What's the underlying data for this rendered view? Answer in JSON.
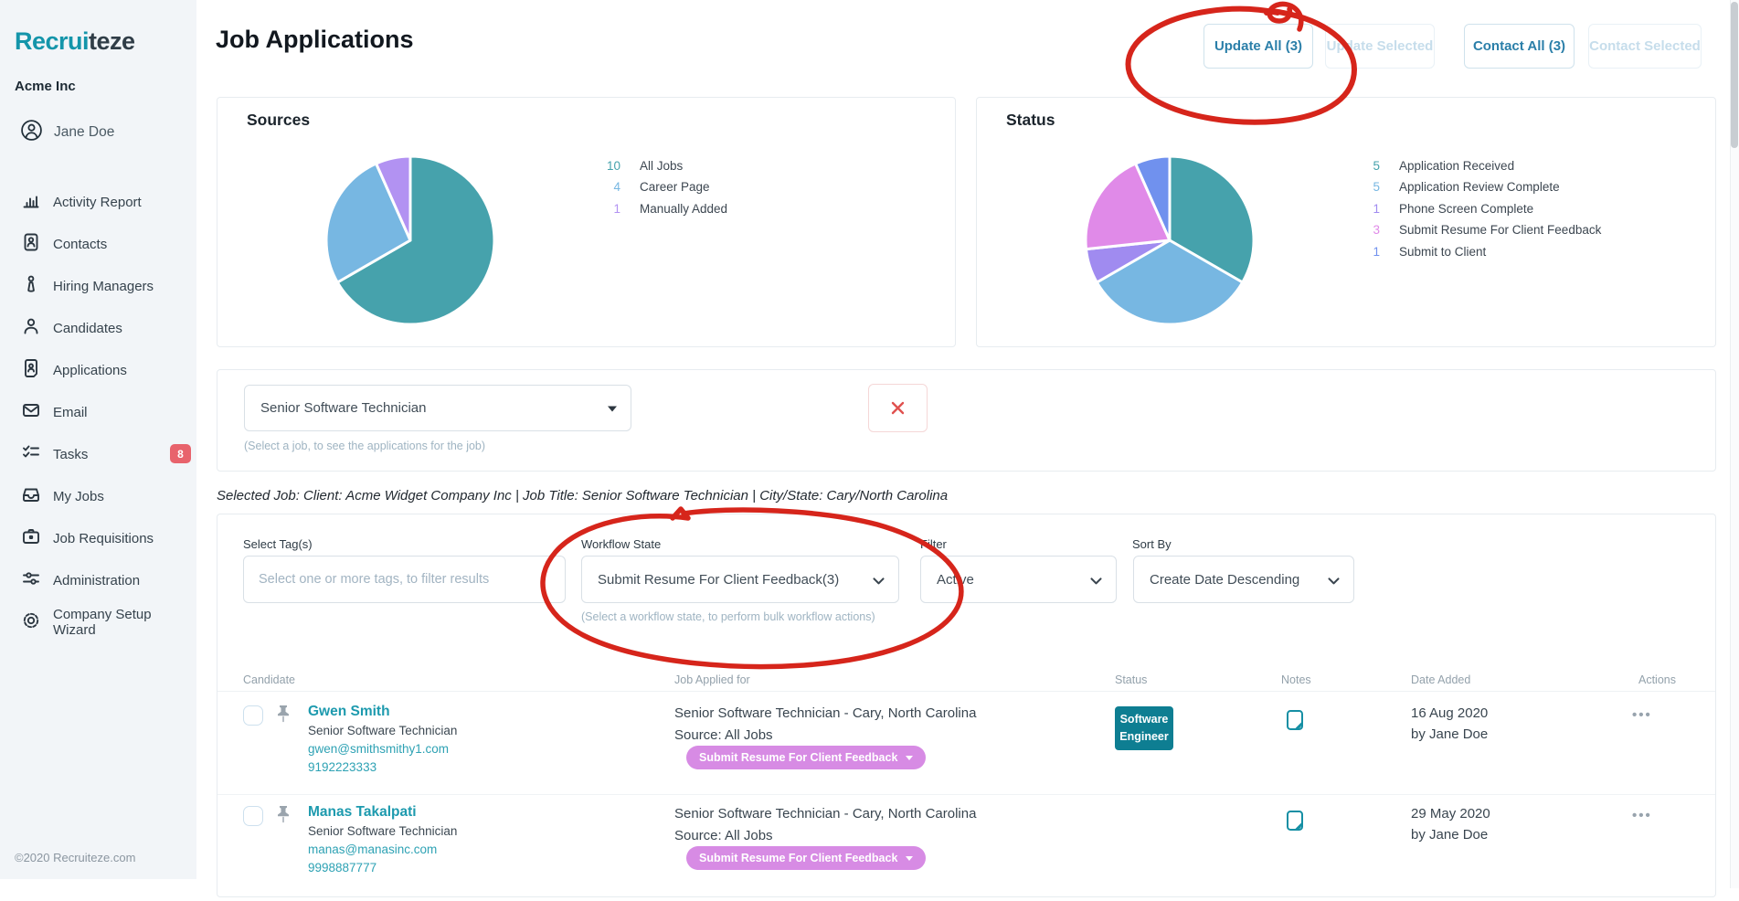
{
  "brand": {
    "name_primary": "Recrui",
    "name_secondary": "teze",
    "company": "Acme Inc",
    "user": "Jane Doe",
    "footer": "©2020 Recruiteze.com"
  },
  "sidebar": {
    "items": [
      {
        "icon": "bar-chart-icon",
        "label": "Activity Report"
      },
      {
        "icon": "contact-card-icon",
        "label": "Contacts"
      },
      {
        "icon": "person-tie-icon",
        "label": "Hiring Managers"
      },
      {
        "icon": "person-icon",
        "label": "Candidates"
      },
      {
        "icon": "document-person-icon",
        "label": "Applications"
      },
      {
        "icon": "envelope-icon",
        "label": "Email"
      },
      {
        "icon": "checklist-icon",
        "label": "Tasks",
        "badge": "8"
      },
      {
        "icon": "inbox-icon",
        "label": "My Jobs"
      },
      {
        "icon": "briefcase-icon",
        "label": "Job Requisitions"
      },
      {
        "icon": "sliders-icon",
        "label": "Administration"
      },
      {
        "icon": "gear-icon",
        "label": "Company Setup Wizard"
      }
    ]
  },
  "header": {
    "title": "Job Applications",
    "buttons": [
      {
        "label": "Update All (3)",
        "enabled": true
      },
      {
        "label": "Update Selected",
        "enabled": false
      },
      {
        "label": "Contact All (3)",
        "enabled": true
      },
      {
        "label": "Contact Selected",
        "enabled": false
      }
    ]
  },
  "chart_data": [
    {
      "type": "pie",
      "title": "Sources",
      "labels": [
        "All Jobs",
        "Career Page",
        "Manually Added"
      ],
      "values": [
        10,
        4,
        1
      ],
      "colors": [
        "#46a2ac",
        "#77b7e2",
        "#b292f2"
      ],
      "legend_position": "right"
    },
    {
      "type": "pie",
      "title": "Status",
      "labels": [
        "Application Received",
        "Application Review Complete",
        "Phone Screen Complete",
        "Submit Resume For Client Feedback",
        "Submit to Client"
      ],
      "values": [
        5,
        5,
        1,
        3,
        1
      ],
      "colors": [
        "#46a2ac",
        "#77b7e2",
        "#a08bf0",
        "#e08ae8",
        "#7091ee"
      ],
      "legend_position": "right"
    }
  ],
  "job_selector": {
    "value": "Senior Software Technician",
    "hint": "(Select a job, to see the applications for the job)"
  },
  "selected_job_line": "Selected Job: Client: Acme Widget Company Inc | Job Title: Senior Software Technician | City/State: Cary/North Carolina",
  "filters": {
    "tags": {
      "label": "Select Tag(s)",
      "placeholder": "Select one or more tags, to filter results"
    },
    "workflow": {
      "label": "Workflow State",
      "value": "Submit Resume For Client Feedback(3)",
      "hint": "(Select a workflow state, to perform bulk workflow actions)"
    },
    "filter": {
      "label": "Filter",
      "value": "Active"
    },
    "sort": {
      "label": "Sort By",
      "value": "Create Date Descending"
    }
  },
  "table": {
    "columns": [
      "Candidate",
      "Job Applied for",
      "Status",
      "Notes",
      "Date Added",
      "Actions"
    ],
    "rows": [
      {
        "name": "Gwen Smith",
        "title": "Senior Software Technician",
        "email": "gwen@smithsmithy1.com",
        "phone": "9192223333",
        "job": "Senior Software Technician - Cary, North Carolina",
        "source": "Source: All Jobs",
        "workflow_badge": "Submit Resume For Client Feedback",
        "status_badge": "Software Engineer",
        "date": "16 Aug 2020",
        "added_by": "by Jane Doe"
      },
      {
        "name": "Manas Takalpati",
        "title": "Senior Software Technician",
        "email": "manas@manasinc.com",
        "phone": "9998887777",
        "job": "Senior Software Technician - Cary, North Carolina",
        "source": "Source: All Jobs",
        "workflow_badge": "Submit Resume For Client Feedback",
        "status_badge": null,
        "date": "29 May 2020",
        "added_by": "by Jane Doe"
      }
    ]
  },
  "annotations": [
    {
      "shape": "hand-drawn-circle",
      "target": "update-all-button",
      "color": "#d6251b"
    },
    {
      "shape": "hand-drawn-circle",
      "target": "workflow-state-select",
      "color": "#d6251b"
    }
  ]
}
